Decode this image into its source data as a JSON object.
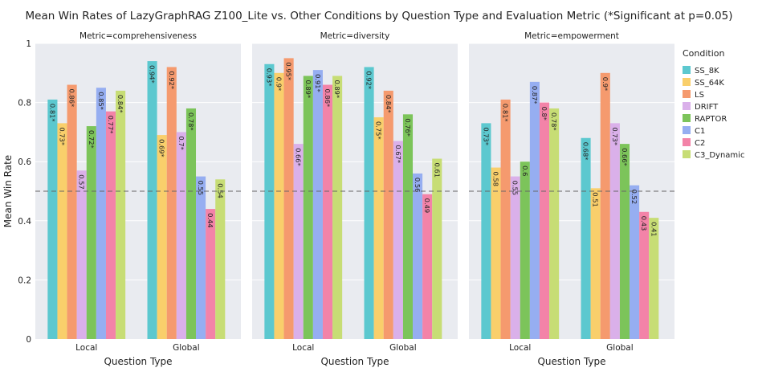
{
  "chart_data": {
    "type": "bar",
    "title": "Mean Win Rates of LazyGraphRAG Z100_Lite vs. Other Conditions by Question Type and Evaluation Metric (*Significant at p=0.05)",
    "xlabel": "Question Type",
    "ylabel": "Mean Win Rate",
    "ylim": [
      0,
      1
    ],
    "yticks": [
      "0",
      "0.2",
      "0.4",
      "0.6",
      "0.8",
      "1"
    ],
    "reference_line": 0.5,
    "legend_title": "Condition",
    "legend_position": "right",
    "categories": [
      "Local",
      "Global"
    ],
    "series": [
      {
        "name": "SS_8K",
        "color": "#5cc8cf"
      },
      {
        "name": "SS_64K",
        "color": "#f9cf6b"
      },
      {
        "name": "LS",
        "color": "#f59a6e"
      },
      {
        "name": "DRIFT",
        "color": "#dab0ea"
      },
      {
        "name": "RAPTOR",
        "color": "#7cc45a"
      },
      {
        "name": "C1",
        "color": "#96aef1"
      },
      {
        "name": "C2",
        "color": "#f383a8"
      },
      {
        "name": "C3_Dynamic",
        "color": "#c7dd75"
      }
    ],
    "facets": [
      {
        "title": "Metric=comprehensiveness",
        "groups": [
          {
            "category": "Local",
            "values": [
              0.81,
              0.73,
              0.86,
              0.57,
              0.72,
              0.85,
              0.77,
              0.84
            ],
            "labels": [
              "0.81*",
              "0.73*",
              "0.86*",
              "0.57",
              "0.72*",
              "0.85*",
              "0.77*",
              "0.84*"
            ]
          },
          {
            "category": "Global",
            "values": [
              0.94,
              0.69,
              0.92,
              0.7,
              0.78,
              0.55,
              0.44,
              0.54
            ],
            "labels": [
              "0.94*",
              "0.69*",
              "0.92*",
              "0.7*",
              "0.78*",
              "0.55",
              "0.44",
              "0.54"
            ]
          }
        ]
      },
      {
        "title": "Metric=diversity",
        "groups": [
          {
            "category": "Local",
            "values": [
              0.93,
              0.9,
              0.95,
              0.66,
              0.89,
              0.91,
              0.86,
              0.89
            ],
            "labels": [
              "0.93*",
              "0.9*",
              "0.95*",
              "0.66*",
              "0.89*",
              "0.91*",
              "0.86*",
              "0.89*"
            ]
          },
          {
            "category": "Global",
            "values": [
              0.92,
              0.75,
              0.84,
              0.67,
              0.76,
              0.56,
              0.49,
              0.61
            ],
            "labels": [
              "0.92*",
              "0.75*",
              "0.84*",
              "0.67*",
              "0.76*",
              "0.56",
              "0.49",
              "0.61"
            ]
          }
        ]
      },
      {
        "title": "Metric=empowerment",
        "groups": [
          {
            "category": "Local",
            "values": [
              0.73,
              0.58,
              0.81,
              0.55,
              0.6,
              0.87,
              0.8,
              0.78
            ],
            "labels": [
              "0.73*",
              "0.58",
              "0.81*",
              "0.55",
              "0.6",
              "0.87*",
              "0.8*",
              "0.78*"
            ]
          },
          {
            "category": "Global",
            "values": [
              0.68,
              0.51,
              0.9,
              0.73,
              0.66,
              0.52,
              0.43,
              0.41
            ],
            "labels": [
              "0.68*",
              "0.51",
              "0.9*",
              "0.73*",
              "0.66*",
              "0.52",
              "0.43",
              "0.41"
            ]
          }
        ]
      }
    ]
  }
}
